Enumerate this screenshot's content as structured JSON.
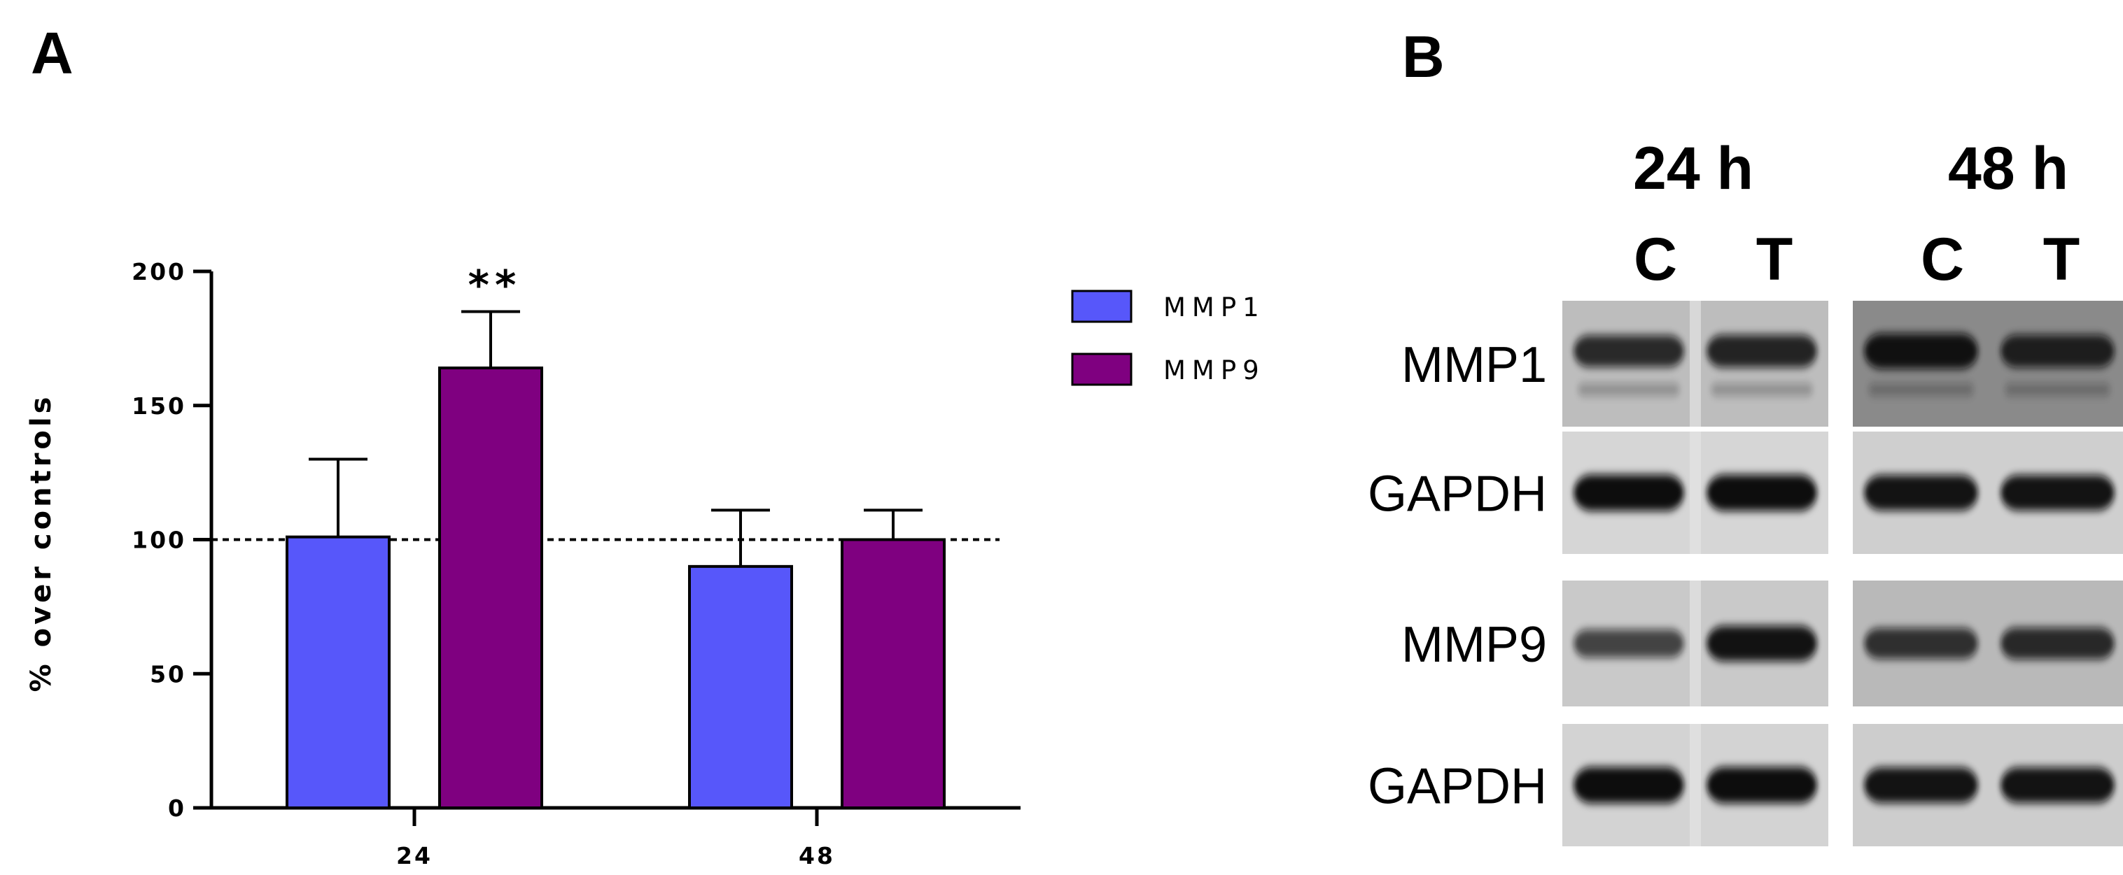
{
  "colors": {
    "mmp1": "#5757fa",
    "mmp9": "#7f0080",
    "axis": "#000000",
    "background": "#ffffff",
    "band": "#0d0d0d"
  },
  "panel_a": {
    "letter": "A"
  },
  "panel_b": {
    "letter": "B"
  },
  "chart_data": {
    "type": "bar",
    "title": "",
    "xlabel": "",
    "ylabel": "% over controls",
    "categories": [
      "24",
      "48"
    ],
    "ylim": [
      0,
      200
    ],
    "yticks": [
      "0",
      "50",
      "100",
      "150",
      "200"
    ],
    "reference_line": 100,
    "series": [
      {
        "name": "MMP1",
        "values": [
          101,
          90
        ],
        "error": [
          29,
          21
        ]
      },
      {
        "name": "MMP9",
        "values": [
          164,
          100
        ],
        "error": [
          21,
          11
        ]
      }
    ],
    "annotations": [
      {
        "category": "24",
        "series": "MMP9",
        "text": "**"
      }
    ],
    "legend": "top-right"
  },
  "blot": {
    "timepoints": [
      "24 h",
      "48 h"
    ],
    "lanes": [
      "C",
      "T"
    ],
    "rows": [
      {
        "label": "MMP1",
        "intensity": [
          [
            0.75,
            0.8
          ],
          [
            0.95,
            0.8
          ]
        ]
      },
      {
        "label": "GAPDH",
        "intensity": [
          [
            1.0,
            1.0
          ],
          [
            0.95,
            0.95
          ]
        ]
      },
      {
        "label": "MMP9",
        "intensity": [
          [
            0.55,
            0.95
          ],
          [
            0.7,
            0.75
          ]
        ]
      },
      {
        "label": "GAPDH",
        "intensity": [
          [
            1.0,
            1.0
          ],
          [
            0.95,
            0.95
          ]
        ]
      }
    ]
  }
}
